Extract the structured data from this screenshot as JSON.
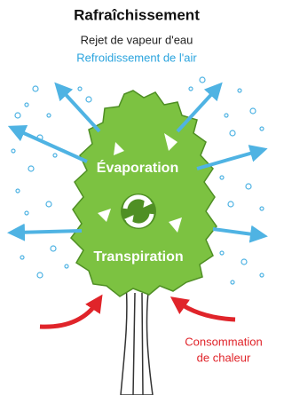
{
  "title": "Rafraîchissement",
  "effects": [
    "Rejet de vapeur d'eau",
    "Refroidissement de l'air"
  ],
  "tree_labels": {
    "top": "Évaporation",
    "bottom": "Transpiration"
  },
  "heat": [
    "Consommation",
    "de chaleur"
  ]
}
